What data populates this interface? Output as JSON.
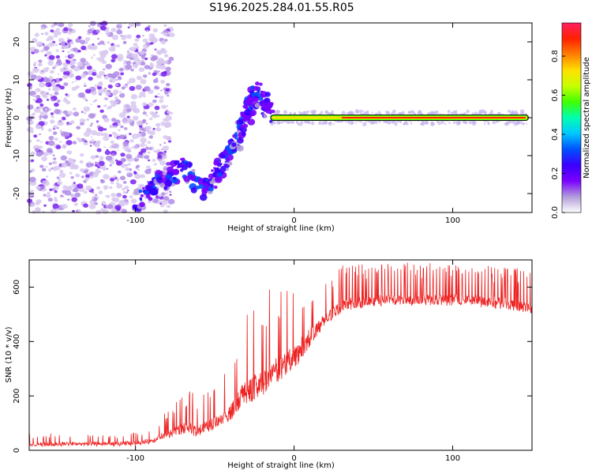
{
  "title": "S196.2025.284.01.55.R05",
  "colors": {
    "snr_line": "#ee2222",
    "spectrogram_background": "#ffffff",
    "axis": "#000000"
  },
  "colormap": [
    "#ffffff",
    "#b19cd9",
    "#7a00ff",
    "#3a00ff",
    "#0050ff",
    "#00c8ff",
    "#00ffb0",
    "#40ff00",
    "#c8ff00",
    "#ffe000",
    "#ff8000",
    "#ff2000",
    "#ff2060"
  ],
  "chart_data": [
    {
      "type": "heatmap",
      "name": "spectrogram",
      "xlabel": "Height of straight line (km)",
      "ylabel": "Frequency (Hz)",
      "xlim": [
        -167,
        150
      ],
      "ylim": [
        -25,
        25
      ],
      "xticks": [
        -100,
        0,
        100
      ],
      "yticks": [
        -20,
        -10,
        0,
        10,
        20
      ],
      "colorbar": {
        "label": "Normalized spectral amplitude",
        "range": [
          0,
          0.97
        ],
        "ticks": [
          0.0,
          0.2,
          0.4,
          0.6,
          0.8
        ]
      },
      "features": [
        {
          "name": "noise-region",
          "x_range": [
            -167,
            -85
          ],
          "freq_range": [
            -25,
            25
          ],
          "amplitude": 0.12
        },
        {
          "name": "descending-trace",
          "points": [
            [
              -100,
              -23
            ],
            [
              -85,
              -17
            ],
            [
              -70,
              -13
            ],
            [
              -55,
              -19
            ],
            [
              -45,
              -12
            ],
            [
              -35,
              -5
            ],
            [
              -28,
              3
            ],
            [
              -22,
              7
            ],
            [
              -15,
              0.5
            ]
          ],
          "amplitude": 0.25
        },
        {
          "name": "steady-line",
          "x_range": [
            -15,
            148
          ],
          "freq": 0,
          "amplitude": 0.95
        }
      ]
    },
    {
      "type": "line",
      "name": "snr",
      "xlabel": "Height of straight line (km)",
      "ylabel": "SNR (10 * v/v)",
      "xlim": [
        -167,
        150
      ],
      "ylim": [
        0,
        700
      ],
      "xticks": [
        -100,
        0,
        100
      ],
      "yticks": [
        0,
        200,
        400,
        600
      ],
      "envelope": [
        {
          "x": -167,
          "baseline": 15,
          "peak": 60
        },
        {
          "x": -140,
          "baseline": 18,
          "peak": 65
        },
        {
          "x": -110,
          "baseline": 18,
          "peak": 55
        },
        {
          "x": -90,
          "baseline": 25,
          "peak": 80
        },
        {
          "x": -80,
          "baseline": 45,
          "peak": 150
        },
        {
          "x": -70,
          "baseline": 60,
          "peak": 230
        },
        {
          "x": -60,
          "baseline": 55,
          "peak": 200
        },
        {
          "x": -50,
          "baseline": 80,
          "peak": 260
        },
        {
          "x": -40,
          "baseline": 110,
          "peak": 330
        },
        {
          "x": -30,
          "baseline": 170,
          "peak": 590
        },
        {
          "x": -20,
          "baseline": 200,
          "peak": 560
        },
        {
          "x": -10,
          "baseline": 250,
          "peak": 640
        },
        {
          "x": 0,
          "baseline": 300,
          "peak": 630
        },
        {
          "x": 10,
          "baseline": 380,
          "peak": 650
        },
        {
          "x": 20,
          "baseline": 460,
          "peak": 640
        },
        {
          "x": 30,
          "baseline": 510,
          "peak": 680
        },
        {
          "x": 50,
          "baseline": 530,
          "peak": 690
        },
        {
          "x": 80,
          "baseline": 535,
          "peak": 690
        },
        {
          "x": 110,
          "baseline": 535,
          "peak": 680
        },
        {
          "x": 130,
          "baseline": 520,
          "peak": 680
        },
        {
          "x": 150,
          "baseline": 500,
          "peak": 660
        }
      ]
    }
  ]
}
